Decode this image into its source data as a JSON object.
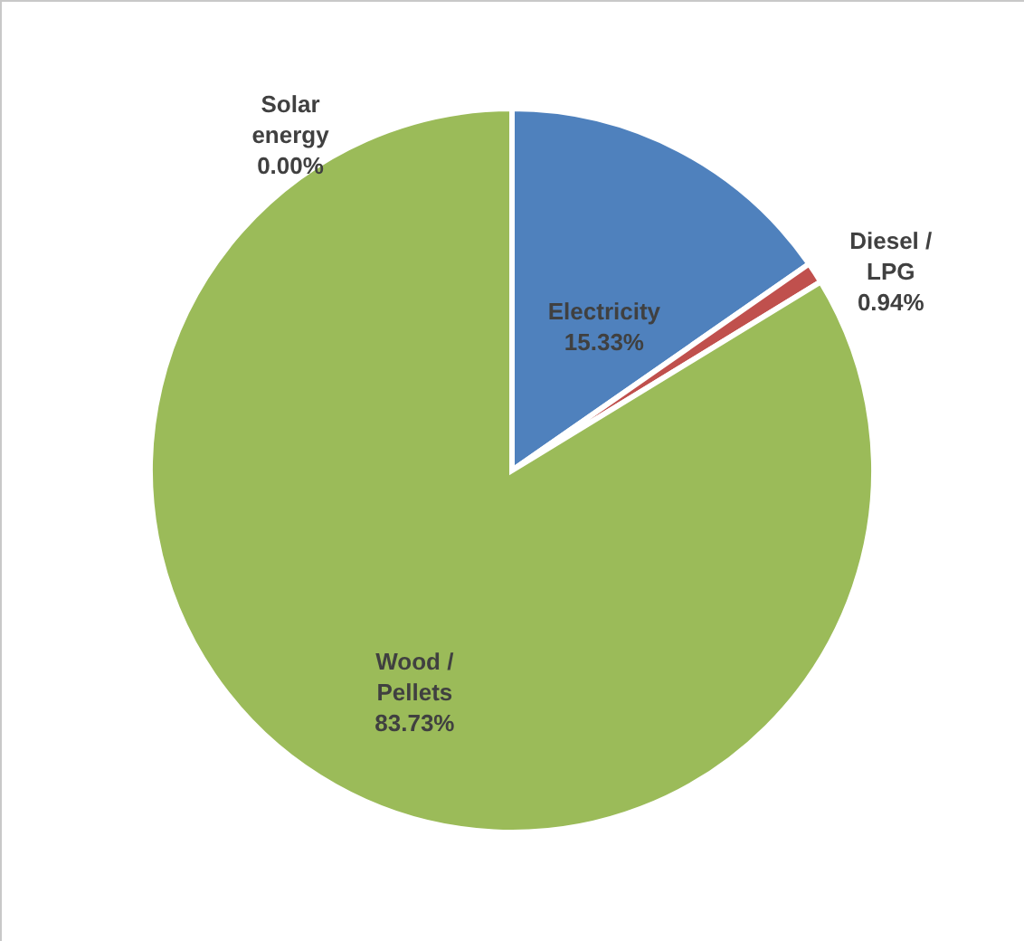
{
  "chart_data": {
    "type": "pie",
    "categories": [
      "Electricity",
      "Diesel / LPG",
      "Wood / Pellets",
      "Solar energy"
    ],
    "values": [
      15.33,
      0.94,
      83.73,
      0.0
    ],
    "colors": [
      "#4f81bd",
      "#c0504d",
      "#9bbb59",
      "#f79646"
    ],
    "value_labels": [
      "15.33%",
      "0.94%",
      "83.73%",
      "0.00%"
    ]
  }
}
